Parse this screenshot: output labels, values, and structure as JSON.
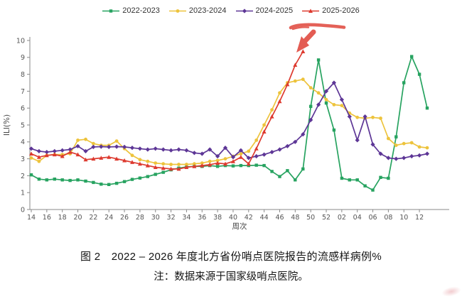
{
  "legend": [
    {
      "label": "2022-2023",
      "color": "#27a360",
      "marker": "square"
    },
    {
      "label": "2023-2024",
      "color": "#edc33c",
      "marker": "circle"
    },
    {
      "label": "2024-2025",
      "color": "#5d3696",
      "marker": "diamond"
    },
    {
      "label": "2025-2026",
      "color": "#dd3a2f",
      "marker": "triangle"
    }
  ],
  "axes": {
    "y_label": "ILI(%)",
    "y_ticks": [
      0,
      1,
      2,
      3,
      4,
      5,
      6,
      7,
      8,
      9,
      10
    ],
    "x_label": "周次"
  },
  "chart_data": {
    "type": "line",
    "title": "2022-2026 年度北方省份哨点医院报告的流感样病例%",
    "xlabel": "周次",
    "ylabel": "ILI(%)",
    "ylim": [
      0,
      10
    ],
    "grid": false,
    "legend_position": "top",
    "x_categories": [
      "14",
      "15",
      "16",
      "17",
      "18",
      "19",
      "20",
      "21",
      "22",
      "23",
      "24",
      "25",
      "26",
      "27",
      "28",
      "29",
      "30",
      "31",
      "32",
      "33",
      "34",
      "35",
      "36",
      "37",
      "38",
      "39",
      "40",
      "41",
      "42",
      "43",
      "44",
      "45",
      "46",
      "47",
      "48",
      "49",
      "50",
      "51",
      "52",
      "01",
      "02",
      "03",
      "04",
      "05",
      "06",
      "07",
      "08",
      "09",
      "10",
      "11",
      "12",
      "13"
    ],
    "series": [
      {
        "name": "2022-2023",
        "color": "#27a360",
        "marker": "square",
        "values": [
          2.05,
          1.8,
          1.75,
          1.8,
          1.75,
          1.72,
          1.75,
          1.68,
          1.6,
          1.5,
          1.48,
          1.55,
          1.65,
          1.78,
          1.86,
          1.95,
          2.08,
          2.2,
          2.35,
          2.45,
          2.52,
          2.55,
          2.55,
          2.6,
          2.55,
          2.6,
          2.58,
          2.6,
          2.6,
          2.62,
          2.6,
          2.25,
          1.95,
          2.3,
          1.75,
          2.4,
          6.1,
          8.85,
          6.3,
          4.7,
          1.85,
          1.75,
          1.75,
          1.4,
          1.15,
          1.9,
          1.85,
          4.3,
          7.5,
          9.05,
          8.0,
          6.0
        ]
      },
      {
        "name": "2023-2024",
        "color": "#edc33c",
        "marker": "circle",
        "values": [
          3.05,
          2.85,
          3.2,
          3.25,
          3.25,
          3.3,
          4.1,
          4.15,
          3.9,
          3.8,
          3.8,
          4.05,
          3.6,
          3.2,
          2.95,
          2.85,
          2.75,
          2.7,
          2.67,
          2.67,
          2.67,
          2.7,
          2.75,
          2.85,
          2.9,
          3.0,
          3.15,
          3.3,
          3.45,
          4.1,
          5.0,
          5.9,
          6.9,
          7.5,
          7.6,
          7.7,
          7.2,
          6.9,
          6.5,
          6.2,
          6.15,
          5.7,
          5.45,
          5.4,
          5.45,
          5.4,
          4.2,
          3.8,
          3.9,
          3.95,
          3.7,
          3.65
        ]
      },
      {
        "name": "2024-2025",
        "color": "#5d3696",
        "marker": "diamond",
        "values": [
          3.6,
          3.45,
          3.4,
          3.45,
          3.5,
          3.55,
          3.75,
          3.45,
          3.7,
          3.72,
          3.7,
          3.72,
          3.7,
          3.65,
          3.6,
          3.55,
          3.6,
          3.55,
          3.5,
          3.55,
          3.5,
          3.35,
          3.3,
          3.55,
          3.15,
          3.65,
          3.1,
          3.5,
          3.05,
          3.15,
          3.25,
          3.4,
          3.55,
          3.75,
          4.0,
          4.45,
          5.3,
          6.2,
          7.0,
          7.5,
          6.5,
          5.5,
          4.1,
          5.5,
          3.85,
          3.3,
          3.05,
          3.0,
          3.05,
          3.15,
          3.2,
          3.3
        ]
      },
      {
        "name": "2025-2026",
        "color": "#dd3a2f",
        "marker": "triangle",
        "values": [
          3.3,
          3.1,
          3.2,
          3.25,
          3.15,
          3.4,
          3.25,
          2.95,
          3.0,
          3.05,
          3.1,
          3.0,
          2.9,
          2.8,
          2.7,
          2.6,
          2.5,
          2.45,
          2.4,
          2.4,
          2.5,
          2.55,
          2.6,
          2.65,
          2.75,
          2.7,
          2.85,
          3.1,
          2.7,
          3.6,
          4.6,
          5.5,
          6.4,
          7.4,
          8.55,
          9.35,
          null,
          null,
          null,
          null,
          null,
          null,
          null,
          null,
          null,
          null,
          null,
          null,
          null,
          null,
          null,
          null
        ]
      }
    ]
  },
  "annotations": {
    "highlight_color": "#e2544a",
    "underline_note": "hand-drawn underline below 2025-2026 legend entry",
    "arrow_note": "hand-drawn arrow pointing at latest 2025-2026 data point"
  },
  "caption": {
    "line1": "图 2　2022 – 2026 年度北方省份哨点医院报告的流感样病例%",
    "line2": "注：数据来源于国家级哨点医院。"
  }
}
